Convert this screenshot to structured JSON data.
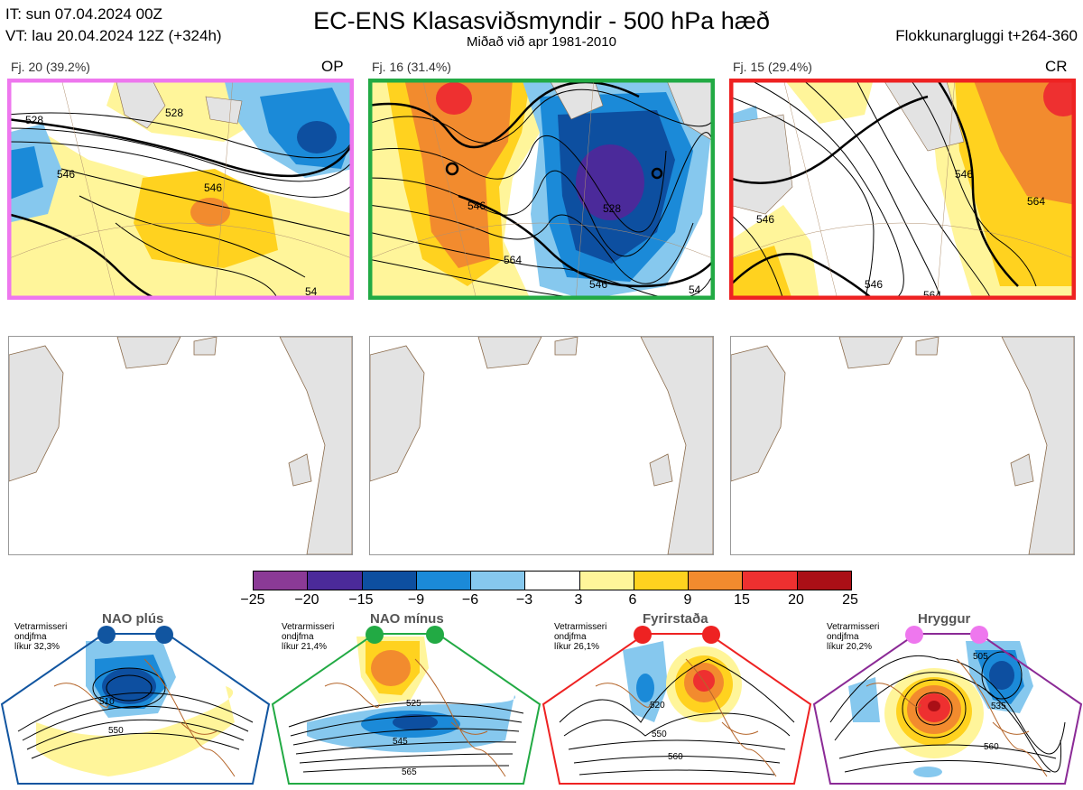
{
  "header": {
    "it_line": "IT: sun 07.04.2024 00Z",
    "vt_line": "VT: lau 20.04.2024 12Z  (+324h)",
    "title": "EC-ENS Klasasviðsmyndir - 500 hPa hæð",
    "subtitle": "Miðað við apr 1981-2010",
    "window": "Flokkunargluggi t+264-360"
  },
  "panels": [
    {
      "label": "Fj. 20 (39.2%)",
      "tag": "OP",
      "frame_color": "#ee77ee",
      "contour_labels": [
        "528",
        "546",
        "528",
        "546",
        "54"
      ]
    },
    {
      "label": "Fj. 16 (31.4%)",
      "tag": "",
      "frame_color": "#22aa44",
      "contour_labels": [
        "546",
        "528",
        "564",
        "546",
        "54"
      ]
    },
    {
      "label": "Fj. 15 (29.4%)",
      "tag": "CR",
      "frame_color": "#ee2222",
      "contour_labels": [
        "546",
        "546",
        "564",
        "546",
        "564"
      ]
    }
  ],
  "colorbar": {
    "ticks": [
      "−25",
      "−20",
      "−15",
      "−9",
      "−6",
      "−3",
      "3",
      "6",
      "9",
      "15",
      "20",
      "25"
    ],
    "colors": [
      "#8b3a96",
      "#4b2a9a",
      "#0d4fa0",
      "#1b8ad8",
      "#86c8ee",
      "#ffffff",
      "#fff59a",
      "#ffd21f",
      "#f28b2e",
      "#ee3030",
      "#aa0f16"
    ]
  },
  "regimes": [
    {
      "title": "NAO plús",
      "text": "Vetrarmisseri\nondjfma\nlíkur 32,3%",
      "frame_color": "#1155a0",
      "dot_color": "#1155a0",
      "contour_labels": [
        "510",
        "550"
      ]
    },
    {
      "title": "NAO mínus",
      "text": "Vetrarmisseri\nondjfma\nlíkur 21,4%",
      "frame_color": "#22aa44",
      "dot_color": "#22aa44",
      "contour_labels": [
        "525",
        "545",
        "565"
      ]
    },
    {
      "title": "Fyrirstaða",
      "text": "Vetrarmisseri\nondjfma\nlíkur 26,1%",
      "frame_color": "#ee2222",
      "dot_color": "#ee2222",
      "contour_labels": [
        "520",
        "550",
        "560"
      ]
    },
    {
      "title": "Hryggur",
      "text": "Vetrarmisseri\nondjfma\nlíkur 20,2%",
      "frame_color": "#8b2a96",
      "dot_color": "#ee77ee",
      "contour_labels": [
        "505",
        "535",
        "560"
      ]
    }
  ]
}
